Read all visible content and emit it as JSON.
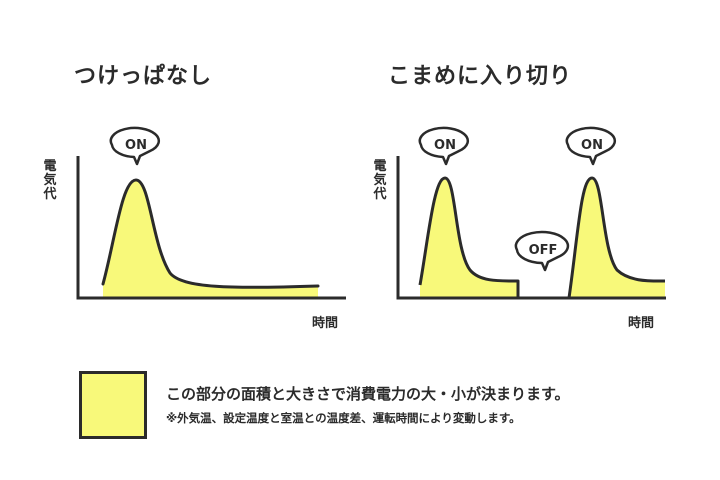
{
  "colors": {
    "fill": "#f8f97a",
    "stroke": "#2b2b2b",
    "background": "#ffffff"
  },
  "left_panel": {
    "title": "つけっぱなし",
    "ylabel": "電気代",
    "xlabel": "時間",
    "bubbles": [
      {
        "label": "ON"
      }
    ]
  },
  "right_panel": {
    "title": "こまめに入り切り",
    "ylabel": "電気代",
    "xlabel": "時間",
    "bubbles": [
      {
        "label": "ON"
      },
      {
        "label": "OFF"
      },
      {
        "label": "ON"
      }
    ]
  },
  "legend": {
    "text": "この部分の面積と大きさで消費電力の大・小が決まります。",
    "note": "※外気温、設定温度と室温との温度差、運転時間により変動します。"
  }
}
